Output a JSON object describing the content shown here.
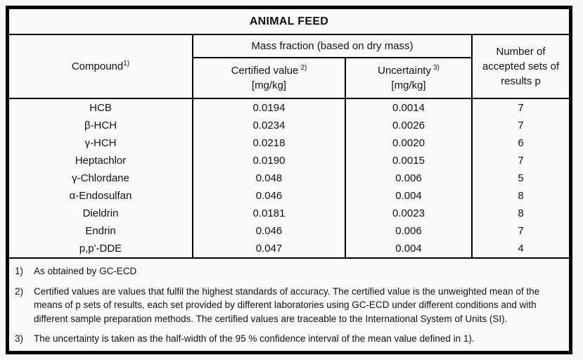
{
  "title": "ANIMAL FEED",
  "table": {
    "columns": {
      "compound": {
        "label": "Compound",
        "sup": "1)"
      },
      "group": "Mass fraction (based on dry mass)",
      "certified": {
        "label": "Certified value",
        "sup": "2)",
        "unit": "[mg/kg]"
      },
      "uncertainty": {
        "label": "Uncertainty",
        "sup": "3)",
        "unit": "[mg/kg]"
      },
      "accepted": "Number of accepted sets of results p"
    },
    "rows": [
      {
        "compound": "HCB",
        "certified": "0.0194",
        "uncertainty": "0.0014",
        "accepted_sets": "7"
      },
      {
        "compound": "β-HCH",
        "certified": "0.0234",
        "uncertainty": "0.0026",
        "accepted_sets": "7"
      },
      {
        "compound": "γ-HCH",
        "certified": "0.0218",
        "uncertainty": "0.0020",
        "accepted_sets": "6"
      },
      {
        "compound": "Heptachlor",
        "certified": "0.0190",
        "uncertainty": "0.0015",
        "accepted_sets": "7"
      },
      {
        "compound": "γ-Chlordane",
        "certified": "0.048",
        "uncertainty": "0.006",
        "accepted_sets": "5"
      },
      {
        "compound": "α-Endosulfan",
        "certified": "0.046",
        "uncertainty": "0.004",
        "accepted_sets": "8"
      },
      {
        "compound": "Dieldrin",
        "certified": "0.0181",
        "uncertainty": "0.0023",
        "accepted_sets": "8"
      },
      {
        "compound": "Endrin",
        "certified": "0.046",
        "uncertainty": "0.006",
        "accepted_sets": "7"
      },
      {
        "compound": "p,p'-DDE",
        "certified": "0.047",
        "uncertainty": "0.004",
        "accepted_sets": "4"
      }
    ]
  },
  "footnotes": [
    {
      "num": "1)",
      "text": "As obtained by GC-ECD"
    },
    {
      "num": "2)",
      "text": "Certified values are values that fulfil the highest standards of accuracy. The certified value is the unweighted mean of the means of p sets of results, each set provided by different laboratories using GC-ECD under different conditions and with different sample preparation methods. The certified values are traceable to the International System of Units (SI)."
    },
    {
      "num": "3)",
      "text": "The uncertainty is taken as the half-width of the 95 % confidence interval of the mean value defined in 1)."
    }
  ],
  "colors": {
    "border": "#000000",
    "background": "#f7f7f5",
    "text": "#111111"
  }
}
